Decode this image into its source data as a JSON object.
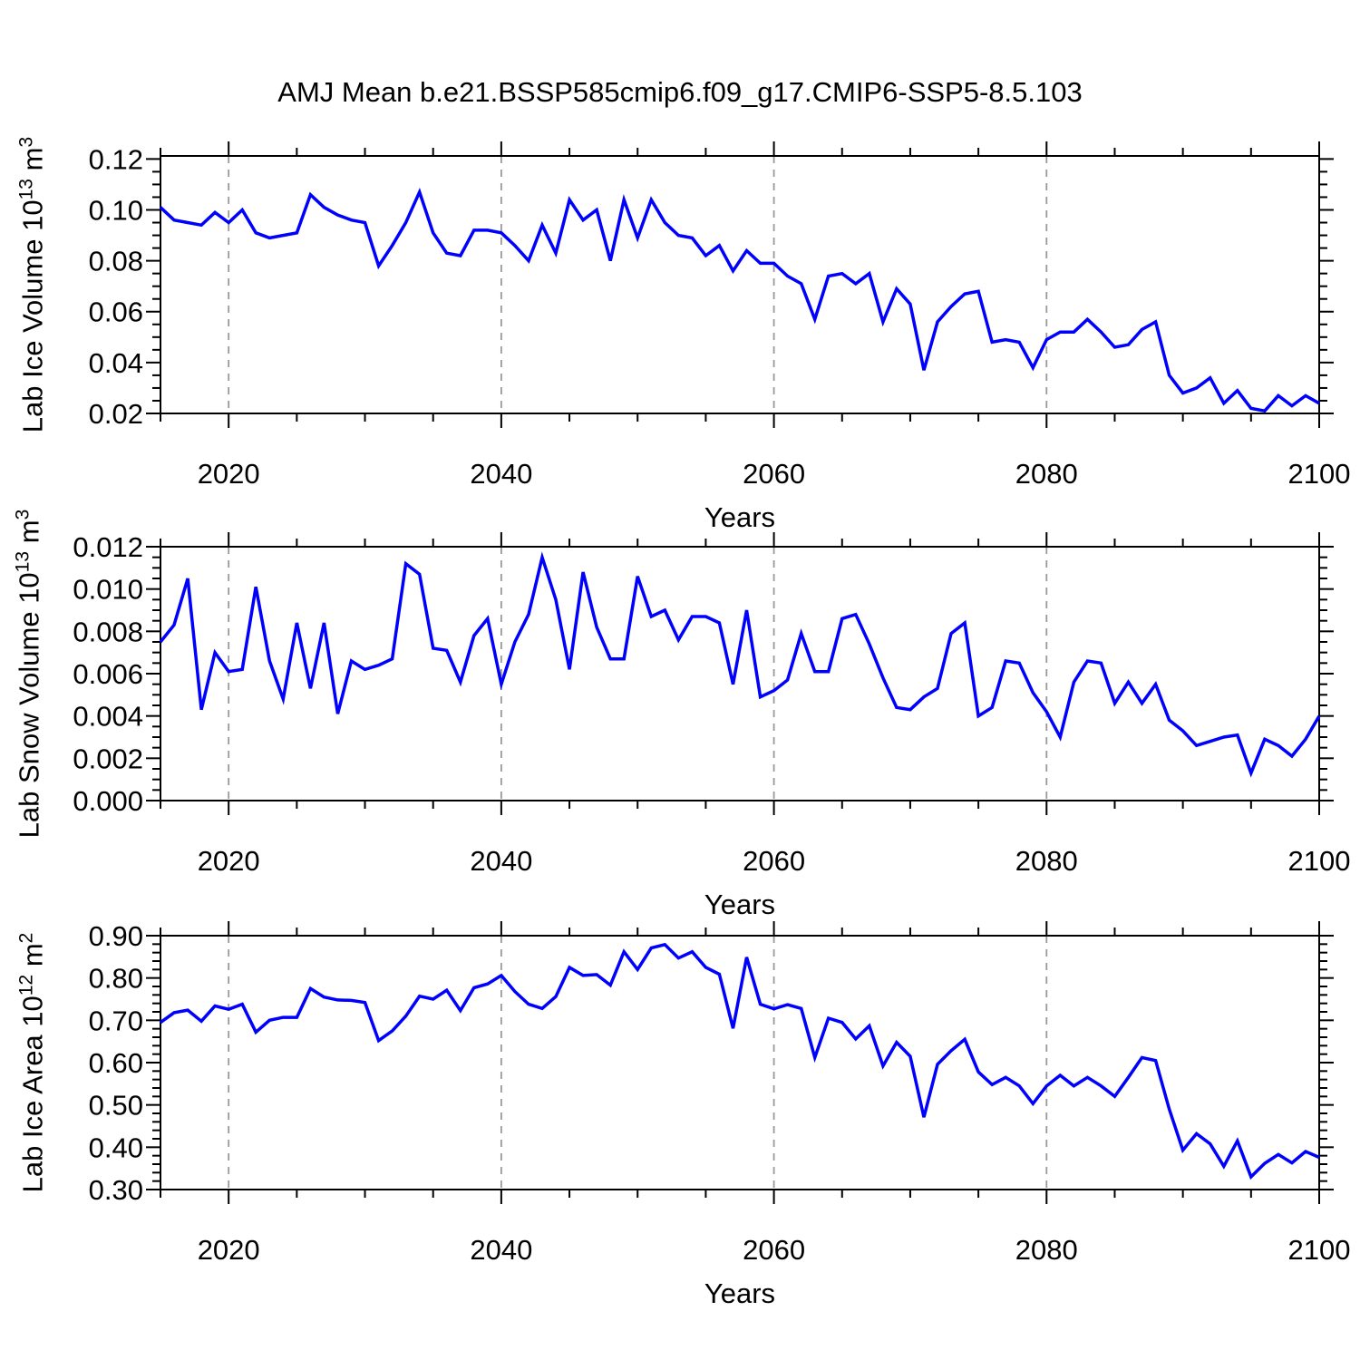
{
  "title": "AMJ Mean b.e21.BSSP585cmip6.f09_g17.CMIP6-SSP5-8.5.103",
  "line_color": "#0000ff",
  "grid_color": "#999999",
  "frame_color": "#000000",
  "x_axis": {
    "label": "Years",
    "start_year": 2015,
    "end_year": 2100,
    "major_ticks": [
      2020,
      2040,
      2060,
      2080,
      2100
    ],
    "major_tick_labels": [
      "2020",
      "2040",
      "2060",
      "2080",
      "2100"
    ],
    "minor_step": 5,
    "gridlines": [
      2020,
      2040,
      2060,
      2080
    ]
  },
  "chart_data": [
    {
      "type": "line",
      "series_name": "lab-ice-volume",
      "ylabel": "Lab Ice Volume 10¹³ m³",
      "ylabel_parts": {
        "base": "Lab Ice Volume 10",
        "exp": "13",
        "unit": " m",
        "unit_exp": "3"
      },
      "xlabel": "Years",
      "x_start": 2015,
      "x_step": 1,
      "ylim": [
        0.02,
        0.1212
      ],
      "ytick_values": [
        0.02,
        0.04,
        0.06,
        0.08,
        0.1,
        0.12
      ],
      "ytick_labels": [
        "0.02",
        "0.04",
        "0.06",
        "0.08",
        "0.10",
        "0.12"
      ],
      "yminor_step": 0.005,
      "minors_per_major": 4,
      "values": [
        0.101,
        0.096,
        0.095,
        0.094,
        0.099,
        0.095,
        0.1,
        0.091,
        0.089,
        0.09,
        0.091,
        0.106,
        0.101,
        0.098,
        0.096,
        0.095,
        0.078,
        0.086,
        0.095,
        0.107,
        0.091,
        0.083,
        0.082,
        0.092,
        0.092,
        0.091,
        0.086,
        0.08,
        0.094,
        0.083,
        0.104,
        0.096,
        0.1,
        0.08,
        0.104,
        0.089,
        0.104,
        0.095,
        0.09,
        0.089,
        0.082,
        0.086,
        0.076,
        0.084,
        0.079,
        0.079,
        0.074,
        0.071,
        0.057,
        0.074,
        0.075,
        0.071,
        0.075,
        0.056,
        0.069,
        0.063,
        0.037,
        0.056,
        0.062,
        0.067,
        0.068,
        0.048,
        0.049,
        0.048,
        0.038,
        0.049,
        0.052,
        0.052,
        0.057,
        0.052,
        0.046,
        0.047,
        0.053,
        0.056,
        0.035,
        0.028,
        0.03,
        0.034,
        0.024,
        0.029,
        0.022,
        0.021,
        0.027,
        0.023,
        0.027,
        0.024
      ]
    },
    {
      "type": "line",
      "series_name": "lab-snow-volume",
      "ylabel": "Lab Snow Volume 10¹³ m³",
      "ylabel_parts": {
        "base": "Lab Snow Volume 10",
        "exp": "13",
        "unit": " m",
        "unit_exp": "3"
      },
      "xlabel": "Years",
      "x_start": 2015,
      "x_step": 1,
      "ylim": [
        0.0,
        0.012
      ],
      "ytick_values": [
        0.0,
        0.002,
        0.004,
        0.006,
        0.008,
        0.01,
        0.012
      ],
      "ytick_labels": [
        "0.000",
        "0.002",
        "0.004",
        "0.006",
        "0.008",
        "0.010",
        "0.012"
      ],
      "yminor_step": 0.0005,
      "minors_per_major": 4,
      "values": [
        0.0075,
        0.0083,
        0.0105,
        0.0043,
        0.007,
        0.0061,
        0.0062,
        0.0101,
        0.0066,
        0.0048,
        0.0084,
        0.0053,
        0.0084,
        0.0041,
        0.0066,
        0.0062,
        0.0064,
        0.0067,
        0.0112,
        0.0107,
        0.0072,
        0.0071,
        0.0056,
        0.0078,
        0.0086,
        0.0055,
        0.0075,
        0.0088,
        0.0115,
        0.0095,
        0.0062,
        0.0108,
        0.0082,
        0.0067,
        0.0067,
        0.0106,
        0.0087,
        0.009,
        0.0076,
        0.0087,
        0.0087,
        0.0084,
        0.0055,
        0.009,
        0.0049,
        0.0052,
        0.0057,
        0.0079,
        0.0061,
        0.0061,
        0.0086,
        0.0088,
        0.0074,
        0.0058,
        0.0044,
        0.0043,
        0.0049,
        0.0053,
        0.0079,
        0.0084,
        0.004,
        0.0044,
        0.0066,
        0.0065,
        0.0051,
        0.0042,
        0.003,
        0.0056,
        0.0066,
        0.0065,
        0.0046,
        0.0056,
        0.0046,
        0.0055,
        0.0038,
        0.0033,
        0.0026,
        0.0028,
        0.003,
        0.0031,
        0.0013,
        0.0029,
        0.0026,
        0.0021,
        0.0029,
        0.004
      ]
    },
    {
      "type": "line",
      "series_name": "lab-ice-area",
      "ylabel": "Lab Ice Area 10¹² m²",
      "ylabel_parts": {
        "base": "Lab Ice Area 10",
        "exp": "12",
        "unit": " m",
        "unit_exp": "2"
      },
      "xlabel": "Years",
      "x_start": 2015,
      "x_step": 1,
      "ylim": [
        0.3,
        0.9
      ],
      "ytick_values": [
        0.3,
        0.4,
        0.5,
        0.6,
        0.7,
        0.8,
        0.9
      ],
      "ytick_labels": [
        "0.30",
        "0.40",
        "0.50",
        "0.60",
        "0.70",
        "0.80",
        "0.90"
      ],
      "yminor_step": 0.02,
      "minors_per_major": 5,
      "values": [
        0.695,
        0.718,
        0.724,
        0.698,
        0.734,
        0.726,
        0.738,
        0.672,
        0.7,
        0.707,
        0.707,
        0.775,
        0.755,
        0.748,
        0.747,
        0.742,
        0.652,
        0.675,
        0.71,
        0.757,
        0.75,
        0.771,
        0.723,
        0.777,
        0.786,
        0.806,
        0.768,
        0.738,
        0.728,
        0.756,
        0.825,
        0.806,
        0.808,
        0.783,
        0.862,
        0.82,
        0.871,
        0.879,
        0.847,
        0.862,
        0.825,
        0.809,
        0.681,
        0.849,
        0.738,
        0.727,
        0.737,
        0.728,
        0.612,
        0.705,
        0.695,
        0.656,
        0.687,
        0.592,
        0.648,
        0.615,
        0.471,
        0.596,
        0.628,
        0.655,
        0.578,
        0.548,
        0.565,
        0.545,
        0.503,
        0.545,
        0.57,
        0.545,
        0.565,
        0.545,
        0.52,
        0.565,
        0.612,
        0.605,
        0.49,
        0.393,
        0.432,
        0.408,
        0.355,
        0.415,
        0.33,
        0.362,
        0.383,
        0.363,
        0.39,
        0.376
      ]
    }
  ]
}
